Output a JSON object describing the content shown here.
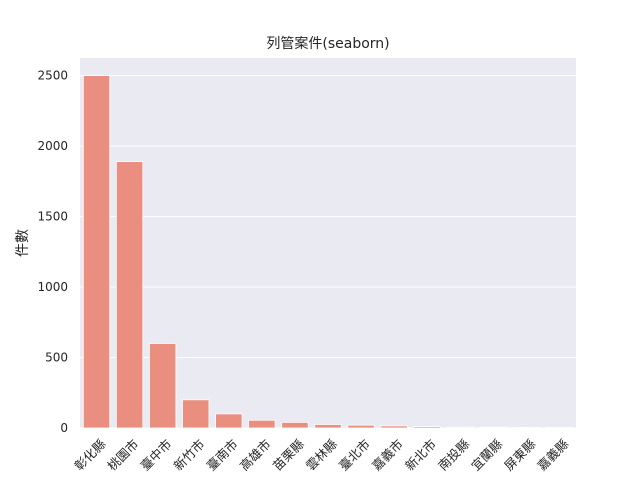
{
  "chart_data": {
    "type": "bar",
    "title": "列管案件(seaborn)",
    "xlabel": "",
    "ylabel": "件數",
    "ylim": [
      0,
      2625
    ],
    "yticks": [
      0,
      500,
      1000,
      1500,
      2000,
      2500
    ],
    "grid": true,
    "legend": "none",
    "categories": [
      "彰化縣",
      "桃園市",
      "臺中市",
      "新竹市",
      "臺南市",
      "高雄市",
      "苗栗縣",
      "雲林縣",
      "臺北市",
      "嘉義市",
      "新北市",
      "南投縣",
      "宜蘭縣",
      "屏東縣",
      "嘉義縣"
    ],
    "values": [
      2500,
      1890,
      600,
      200,
      100,
      55,
      40,
      25,
      20,
      15,
      10,
      6,
      5,
      3,
      2
    ],
    "colors": {
      "bar": "#ea8e80",
      "plot_bg": "#eaeaf2",
      "grid": "#ffffff"
    }
  }
}
